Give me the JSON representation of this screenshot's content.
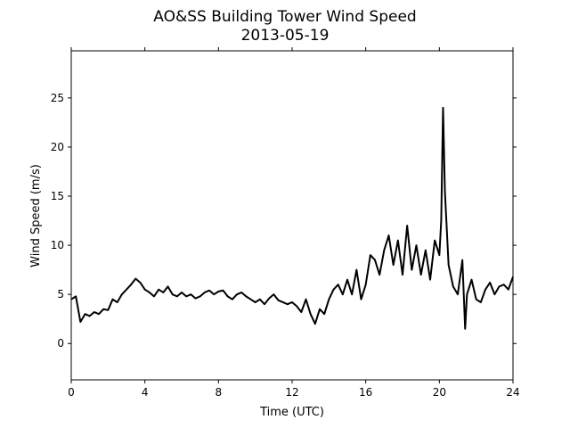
{
  "chart_data": {
    "type": "line",
    "title": "AO&SS Building Tower Wind Speed",
    "subtitle": "2013-05-19",
    "x_label": "Time (UTC)",
    "y_label": "Wind Speed (m/s)",
    "x": [
      0,
      0.25,
      0.5,
      0.75,
      1,
      1.25,
      1.5,
      1.75,
      2,
      2.25,
      2.5,
      2.75,
      3,
      3.25,
      3.5,
      3.75,
      4,
      4.25,
      4.5,
      4.75,
      5,
      5.25,
      5.5,
      5.75,
      6,
      6.25,
      6.5,
      6.75,
      7,
      7.25,
      7.5,
      7.75,
      8,
      8.25,
      8.5,
      8.75,
      9,
      9.25,
      9.5,
      9.75,
      10,
      10.25,
      10.5,
      10.75,
      11,
      11.25,
      11.5,
      11.75,
      12,
      12.25,
      12.5,
      12.75,
      13,
      13.25,
      13.5,
      13.75,
      14,
      14.25,
      14.5,
      14.75,
      15,
      15.25,
      15.5,
      15.75,
      16,
      16.25,
      16.5,
      16.75,
      17,
      17.25,
      17.5,
      17.75,
      18,
      18.25,
      18.5,
      18.75,
      19,
      19.25,
      19.5,
      19.75,
      20,
      20.1,
      20.2,
      20.3,
      20.5,
      20.75,
      21,
      21.25,
      21.4,
      21.5,
      21.75,
      22,
      22.25,
      22.5,
      22.75,
      23,
      23.25,
      23.5,
      23.75,
      24
    ],
    "series": [
      {
        "name": "Wind Speed",
        "color": "#000000",
        "values": [
          4.5,
          4.8,
          2.2,
          3.0,
          2.8,
          3.2,
          3.0,
          3.5,
          3.4,
          4.5,
          4.2,
          5.0,
          5.5,
          6.0,
          6.6,
          6.2,
          5.5,
          5.2,
          4.8,
          5.5,
          5.2,
          5.8,
          5.0,
          4.8,
          5.2,
          4.8,
          5.0,
          4.6,
          4.8,
          5.2,
          5.4,
          5.0,
          5.3,
          5.4,
          4.8,
          4.5,
          5.0,
          5.2,
          4.8,
          4.5,
          4.2,
          4.5,
          4.0,
          4.6,
          5.0,
          4.4,
          4.2,
          4.0,
          4.2,
          3.8,
          3.2,
          4.5,
          3.0,
          2.0,
          3.5,
          3.0,
          4.5,
          5.5,
          6.0,
          5.0,
          6.5,
          5.0,
          7.5,
          4.5,
          6.0,
          9.0,
          8.5,
          7.0,
          9.5,
          11.0,
          8.0,
          10.5,
          7.0,
          12.0,
          7.5,
          10.0,
          7.0,
          9.5,
          6.5,
          10.5,
          9.0,
          12.5,
          24.0,
          15.5,
          8.0,
          5.8,
          5.0,
          8.5,
          1.5,
          5.0,
          6.5,
          4.5,
          4.2,
          5.5,
          6.2,
          5.0,
          5.8,
          6.0,
          5.5,
          6.8
        ]
      }
    ],
    "xlim": [
      0,
      24
    ],
    "xticks": [
      0,
      4,
      8,
      12,
      16,
      20,
      24
    ],
    "ylim": [
      -3.7,
      29.8
    ],
    "yticks": [
      0,
      5,
      10,
      15,
      20,
      25
    ]
  }
}
